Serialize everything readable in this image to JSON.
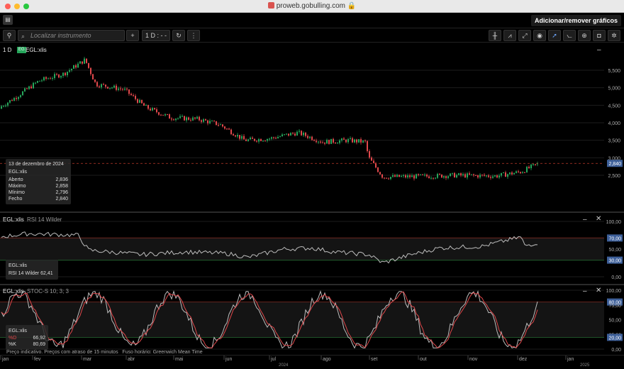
{
  "browser": {
    "url": "proweb.gobulling.com"
  },
  "header": {
    "add_remove_label": "Adicionar/remover gráficos"
  },
  "toolbar": {
    "search_placeholder": "Localizar instrumento",
    "add_label": "+",
    "interval_label": "1 D : - -",
    "refresh_icon": "refresh-icon",
    "more_icon": "kebab-icon",
    "right_icons": [
      "bar-chart-icon",
      "indicator-icon",
      "expand-icon",
      "eye-icon",
      "cursor-icon",
      "drawing-icon",
      "zoom-icon",
      "camera-icon",
      "gear-icon"
    ]
  },
  "main": {
    "interval": "1 D",
    "badge": "EG",
    "symbol": "EGL:xlis",
    "y_ticks": [
      "5,500",
      "5,000",
      "4,500",
      "4,000",
      "3,500",
      "3,000",
      "2,500"
    ],
    "last_price": "2,840"
  },
  "ohlc": {
    "date": "13 de dezembro de 2024",
    "symbol": "EGL:xlis",
    "rows": [
      {
        "label": "Aberto",
        "value": "2,836"
      },
      {
        "label": "Máximo",
        "value": "2,858"
      },
      {
        "label": "Mínimo",
        "value": "2,796"
      },
      {
        "label": "Fecho",
        "value": "2,840"
      }
    ]
  },
  "rsi": {
    "symbol": "EGL:xlis",
    "name": "RSI 14 Wilder",
    "y_ticks": [
      "100,00",
      "70,00",
      "50,00",
      "30,00",
      "0,00"
    ],
    "legend_symbol": "EGL:xlis",
    "legend_text": "RSI 14 Wilder 62,41"
  },
  "stoch": {
    "symbol": "EGL:xlis",
    "name": "STOC-S 10; 3; 3",
    "y_ticks": [
      "100,00",
      "80,00",
      "75,00",
      "50,00",
      "25,00",
      "20,00",
      "0,00"
    ],
    "legend_symbol": "EGL:xlis",
    "d_label": "%D",
    "d_value": "66,92",
    "k_label": "%K",
    "k_value": "80,69"
  },
  "footer": {
    "delay": "Preço indicativo. Preços com atraso de 15 minutos",
    "timezone": "Fuso horário: Greenwich Mean Time"
  },
  "xaxis": {
    "months": [
      "jan",
      "fev",
      "mar",
      "abr",
      "mai",
      "jun",
      "jul",
      "ago",
      "set",
      "out",
      "nov",
      "dez",
      "jan"
    ],
    "year_2024": "2024",
    "year_2025": "2025"
  },
  "colors": {
    "up": "#26a65b",
    "down": "#e0484b",
    "rsi_line": "#bdbdbd",
    "k_line": "#bdbdbd",
    "d_line": "#e0484b",
    "upper": "#c0392b",
    "lower": "#2e9e44",
    "level_badge": "#3d5f99"
  }
}
